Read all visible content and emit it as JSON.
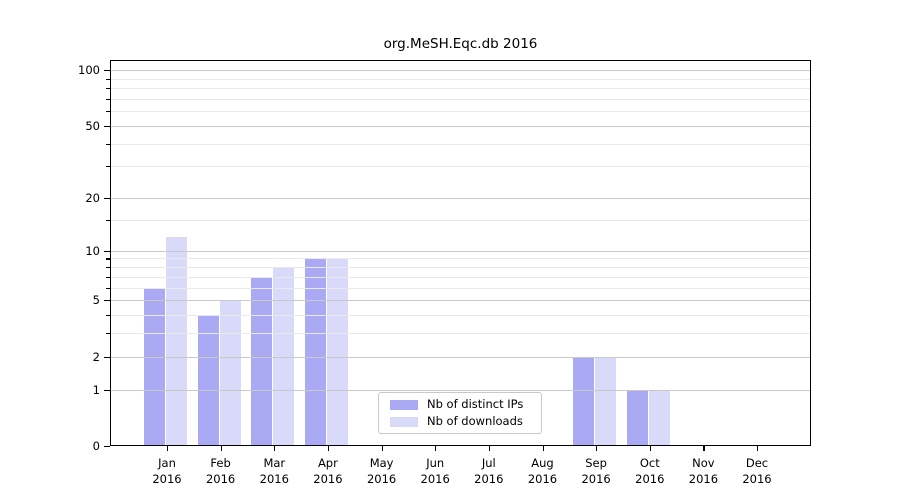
{
  "figure_title": "org.MeSH.Eqc.db 2016",
  "chart_data": {
    "type": "bar",
    "title": "org.MeSH.Eqc.db 2016",
    "categories": [
      "Jan",
      "Feb",
      "Mar",
      "Apr",
      "May",
      "Jun",
      "Jul",
      "Aug",
      "Sep",
      "Oct",
      "Nov",
      "Dec"
    ],
    "year_label": "2016",
    "series": [
      {
        "name": "Nb of distinct IPs",
        "color": "#a9a9f4",
        "values": [
          6,
          4,
          7,
          9,
          0,
          0,
          0,
          0,
          2,
          1,
          0,
          0
        ]
      },
      {
        "name": "Nb of downloads",
        "color": "#d9d9f9",
        "values": [
          12,
          5,
          8,
          9,
          0,
          0,
          0,
          0,
          2,
          1,
          0,
          0
        ]
      }
    ],
    "xlabel": "",
    "ylabel": "",
    "yscale": "log1p",
    "ylim": [
      0,
      113
    ],
    "yticks_major": [
      0,
      1,
      2,
      5,
      10,
      20,
      50,
      100
    ],
    "yticks_minor": [
      3,
      4,
      6,
      7,
      8,
      9,
      15,
      30,
      40,
      60,
      70,
      80,
      90
    ],
    "grid": true,
    "legend_position": "lower-center",
    "axis_color": "#000000",
    "grid_major_color": "#c9c9c9",
    "grid_minor_color": "#e9e9e9"
  }
}
